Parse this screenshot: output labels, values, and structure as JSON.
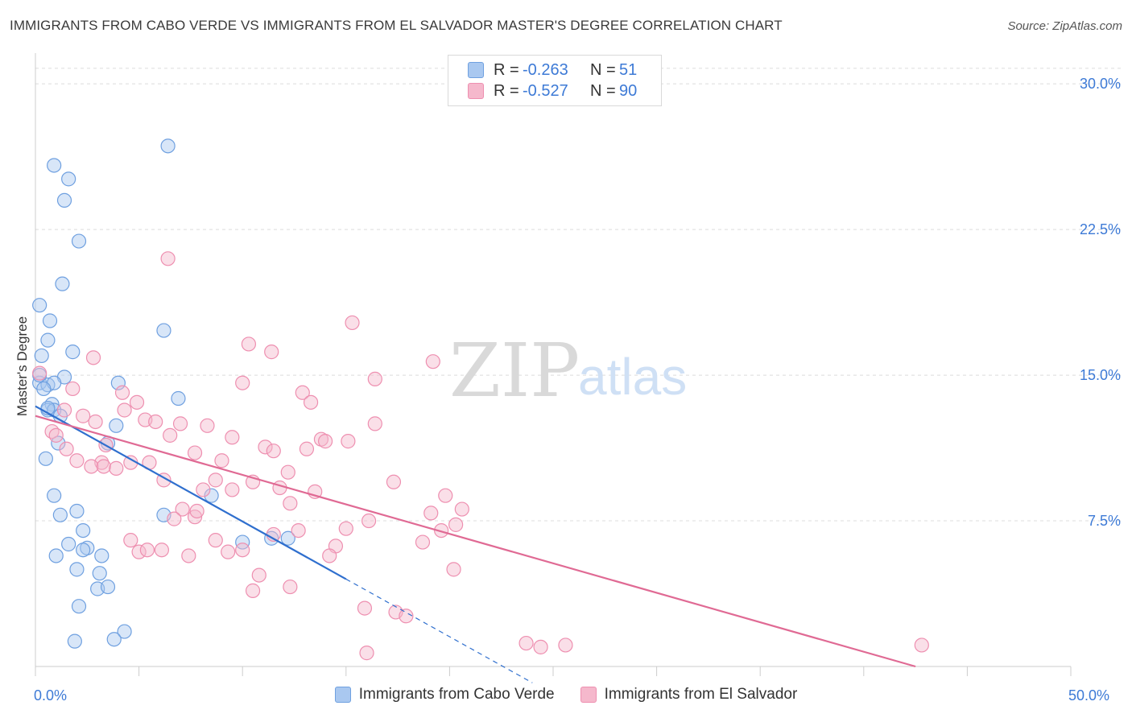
{
  "title": "IMMIGRANTS FROM CABO VERDE VS IMMIGRANTS FROM EL SALVADOR MASTER'S DEGREE CORRELATION CHART",
  "source": "Source: ZipAtlas.com",
  "watermark": {
    "zip": "ZIP",
    "atlas": "atlas"
  },
  "legend": {
    "series1": {
      "r_label": "R =",
      "r_value": "-0.263",
      "n_label": "N =",
      "n_value": "51"
    },
    "series2": {
      "r_label": "R =",
      "r_value": "-0.527",
      "n_label": "N =",
      "n_value": "90"
    }
  },
  "colors": {
    "blue_fill": "#a9c8f0",
    "blue_stroke": "#6fa0e0",
    "blue_line": "#2f6fce",
    "pink_fill": "#f5b8cc",
    "pink_stroke": "#ee8fb0",
    "pink_line": "#e06a94",
    "grid": "#dcdcdc",
    "tick_text": "#3d7ad6"
  },
  "chart_data": {
    "type": "scatter",
    "xlabel": "",
    "ylabel": "Master's Degree",
    "xlim": [
      0,
      50
    ],
    "ylim": [
      0,
      31
    ],
    "x_tick_labels": [
      {
        "value": 0,
        "label": "0.0%"
      },
      {
        "value": 50,
        "label": "50.0%"
      }
    ],
    "y_tick_labels": [
      {
        "value": 7.5,
        "label": "7.5%"
      },
      {
        "value": 15,
        "label": "15.0%"
      },
      {
        "value": 22.5,
        "label": "22.5%"
      },
      {
        "value": 30,
        "label": "30.0%"
      }
    ],
    "series": [
      {
        "name": "Immigrants from Cabo Verde",
        "color": "blue",
        "trend": {
          "x0": 0,
          "y0": 13.4,
          "x1": 15,
          "y1": 4.5,
          "dash_to_x": 24
        },
        "points": [
          [
            6.4,
            26.8
          ],
          [
            0.9,
            25.8
          ],
          [
            1.6,
            25.1
          ],
          [
            1.4,
            24.0
          ],
          [
            2.1,
            21.9
          ],
          [
            1.3,
            19.7
          ],
          [
            0.2,
            18.6
          ],
          [
            0.7,
            17.8
          ],
          [
            6.2,
            17.3
          ],
          [
            0.6,
            16.8
          ],
          [
            1.8,
            16.2
          ],
          [
            0.3,
            16.0
          ],
          [
            1.4,
            14.9
          ],
          [
            4.0,
            14.6
          ],
          [
            0.2,
            14.6
          ],
          [
            0.6,
            14.5
          ],
          [
            0.9,
            14.6
          ],
          [
            0.4,
            14.3
          ],
          [
            6.9,
            13.8
          ],
          [
            0.8,
            13.5
          ],
          [
            0.6,
            13.2
          ],
          [
            0.9,
            13.2
          ],
          [
            0.6,
            13.3
          ],
          [
            1.2,
            12.9
          ],
          [
            3.9,
            12.4
          ],
          [
            1.1,
            11.5
          ],
          [
            3.5,
            11.5
          ],
          [
            0.5,
            10.7
          ],
          [
            0.9,
            8.8
          ],
          [
            8.5,
            8.8
          ],
          [
            2.0,
            8.0
          ],
          [
            1.2,
            7.8
          ],
          [
            6.2,
            7.8
          ],
          [
            2.3,
            7.0
          ],
          [
            1.6,
            6.3
          ],
          [
            2.5,
            6.1
          ],
          [
            11.4,
            6.6
          ],
          [
            12.2,
            6.6
          ],
          [
            10.0,
            6.4
          ],
          [
            2.3,
            6.0
          ],
          [
            1.0,
            5.7
          ],
          [
            3.2,
            5.7
          ],
          [
            2.0,
            5.0
          ],
          [
            3.1,
            4.8
          ],
          [
            3.0,
            4.0
          ],
          [
            3.5,
            4.1
          ],
          [
            2.1,
            3.1
          ],
          [
            4.3,
            1.8
          ],
          [
            3.8,
            1.4
          ],
          [
            1.9,
            1.3
          ],
          [
            0.2,
            15.0
          ]
        ]
      },
      {
        "name": "Immigrants from El Salvador",
        "color": "pink",
        "trend": {
          "x0": 0,
          "y0": 12.9,
          "x1": 42.5,
          "y1": 0
        },
        "points": [
          [
            0.2,
            15.1
          ],
          [
            6.4,
            21.0
          ],
          [
            15.3,
            17.7
          ],
          [
            10.3,
            16.6
          ],
          [
            11.4,
            16.2
          ],
          [
            2.8,
            15.9
          ],
          [
            19.2,
            15.7
          ],
          [
            16.4,
            14.8
          ],
          [
            10.0,
            14.6
          ],
          [
            1.8,
            14.3
          ],
          [
            4.2,
            14.1
          ],
          [
            12.9,
            14.1
          ],
          [
            4.9,
            13.6
          ],
          [
            13.3,
            13.6
          ],
          [
            1.4,
            13.2
          ],
          [
            4.3,
            13.2
          ],
          [
            2.3,
            12.9
          ],
          [
            2.9,
            12.6
          ],
          [
            5.3,
            12.7
          ],
          [
            5.8,
            12.6
          ],
          [
            7.0,
            12.5
          ],
          [
            8.3,
            12.4
          ],
          [
            16.4,
            12.5
          ],
          [
            0.8,
            12.1
          ],
          [
            1.0,
            11.9
          ],
          [
            6.5,
            11.9
          ],
          [
            9.5,
            11.8
          ],
          [
            13.8,
            11.7
          ],
          [
            14.0,
            11.6
          ],
          [
            15.1,
            11.6
          ],
          [
            3.4,
            11.4
          ],
          [
            1.5,
            11.2
          ],
          [
            11.1,
            11.3
          ],
          [
            11.5,
            11.1
          ],
          [
            7.7,
            11.0
          ],
          [
            13.1,
            11.2
          ],
          [
            2.0,
            10.6
          ],
          [
            3.2,
            10.5
          ],
          [
            4.6,
            10.5
          ],
          [
            5.5,
            10.5
          ],
          [
            9.0,
            10.6
          ],
          [
            2.7,
            10.3
          ],
          [
            3.3,
            10.3
          ],
          [
            3.9,
            10.2
          ],
          [
            12.2,
            10.0
          ],
          [
            8.7,
            9.6
          ],
          [
            10.5,
            9.5
          ],
          [
            6.2,
            9.6
          ],
          [
            17.3,
            9.5
          ],
          [
            8.1,
            9.1
          ],
          [
            11.8,
            9.2
          ],
          [
            13.5,
            9.0
          ],
          [
            9.5,
            9.1
          ],
          [
            19.8,
            8.8
          ],
          [
            12.3,
            8.4
          ],
          [
            7.1,
            8.1
          ],
          [
            20.6,
            8.1
          ],
          [
            19.1,
            7.9
          ],
          [
            7.7,
            7.7
          ],
          [
            6.7,
            7.6
          ],
          [
            16.1,
            7.5
          ],
          [
            15.0,
            7.1
          ],
          [
            12.7,
            7.0
          ],
          [
            19.6,
            7.0
          ],
          [
            20.3,
            7.3
          ],
          [
            4.6,
            6.5
          ],
          [
            8.7,
            6.5
          ],
          [
            18.7,
            6.4
          ],
          [
            14.5,
            6.2
          ],
          [
            6.1,
            6.0
          ],
          [
            5.0,
            5.9
          ],
          [
            10.0,
            6.0
          ],
          [
            14.2,
            5.7
          ],
          [
            7.4,
            5.7
          ],
          [
            9.3,
            5.9
          ],
          [
            7.8,
            8.0
          ],
          [
            20.2,
            5.0
          ],
          [
            10.8,
            4.7
          ],
          [
            12.3,
            4.1
          ],
          [
            10.5,
            3.9
          ],
          [
            15.9,
            3.0
          ],
          [
            17.4,
            2.8
          ],
          [
            17.9,
            2.6
          ],
          [
            23.7,
            1.2
          ],
          [
            25.6,
            1.1
          ],
          [
            24.4,
            1.0
          ],
          [
            16.0,
            0.7
          ],
          [
            42.8,
            1.1
          ],
          [
            5.4,
            6.0
          ],
          [
            11.5,
            6.8
          ]
        ]
      }
    ]
  }
}
